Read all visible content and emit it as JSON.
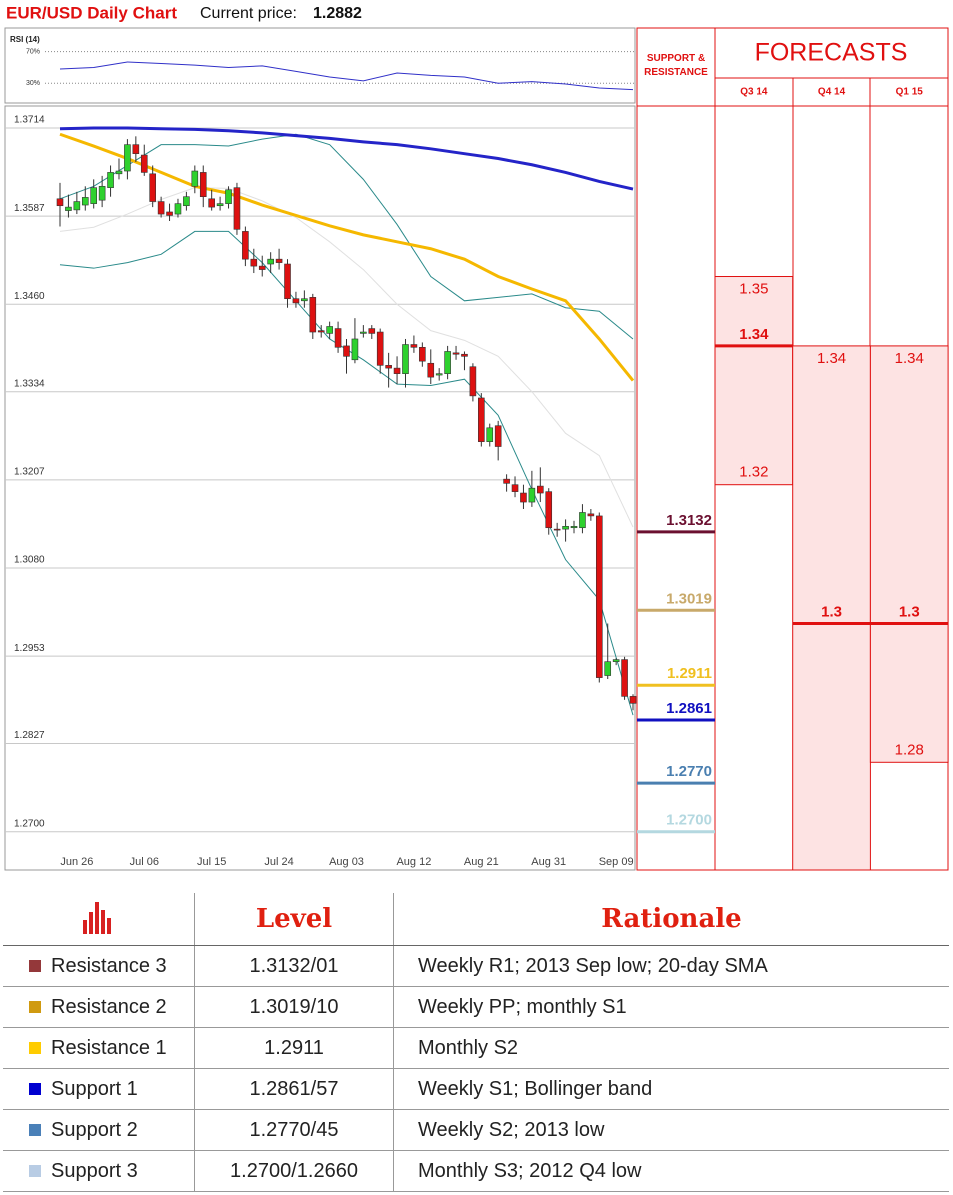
{
  "header": {
    "title": "EUR/USD Daily Chart",
    "price_label": "Current price:",
    "price": 1.2882
  },
  "chart_data": [
    {
      "type": "line",
      "title": "RSI (14)",
      "x": [
        0,
        4,
        8,
        12,
        16,
        20,
        24,
        28,
        32,
        36,
        40,
        44,
        48,
        52,
        56,
        60,
        64,
        68
      ],
      "xlim": [
        0,
        68
      ],
      "series": [
        {
          "color": "#3030c8",
          "values": [
            48,
            50,
            57,
            55,
            53,
            50,
            52,
            45,
            38,
            33,
            43,
            40,
            38,
            30,
            32,
            29,
            24,
            22
          ]
        }
      ],
      "ylim": [
        5,
        100
      ],
      "yticks": [
        {
          "value": 70,
          "label": "70%"
        },
        {
          "value": 30,
          "label": "30%"
        }
      ]
    },
    {
      "type": "candlestick",
      "categories": [
        null,
        null,
        "Jun 26",
        null,
        null,
        null,
        null,
        null,
        null,
        null,
        "Jul 06",
        null,
        null,
        null,
        null,
        null,
        null,
        null,
        "Jul 15",
        null,
        null,
        null,
        null,
        null,
        null,
        null,
        "Jul 24",
        null,
        null,
        null,
        null,
        null,
        null,
        null,
        "Aug 03",
        null,
        null,
        null,
        null,
        null,
        null,
        null,
        "Aug 12",
        null,
        null,
        null,
        null,
        null,
        null,
        null,
        "Aug 21",
        null,
        null,
        null,
        null,
        null,
        null,
        null,
        "Aug 31",
        null,
        null,
        null,
        null,
        null,
        null,
        null,
        "Sep 09",
        null,
        null
      ],
      "open": [
        1.3612,
        1.3595,
        1.3596,
        1.3603,
        1.3605,
        1.361,
        1.3628,
        1.3648,
        1.3652,
        1.369,
        1.3675,
        1.3648,
        1.3608,
        1.3593,
        1.359,
        1.3602,
        1.363,
        1.365,
        1.3612,
        1.3602,
        1.3605,
        1.3628,
        1.3565,
        1.3525,
        1.3515,
        1.3518,
        1.3525,
        1.3518,
        1.3468,
        1.3465,
        1.347,
        1.3422,
        1.3418,
        1.3425,
        1.34,
        1.338,
        1.3418,
        1.3425,
        1.342,
        1.3372,
        1.3368,
        1.336,
        1.3402,
        1.3398,
        1.3375,
        1.3358,
        1.336,
        1.339,
        1.3388,
        1.337,
        1.3325,
        1.3262,
        1.3285,
        1.3208,
        1.32,
        1.3188,
        1.3175,
        1.3198,
        1.319,
        1.3136,
        1.3136,
        1.3138,
        1.3138,
        1.3158,
        1.3155,
        1.2925,
        1.2945,
        1.2948,
        1.2895
      ],
      "high": [
        1.3635,
        1.3618,
        1.3622,
        1.363,
        1.364,
        1.3645,
        1.366,
        1.367,
        1.3698,
        1.3702,
        1.369,
        1.366,
        1.3615,
        1.3605,
        1.3612,
        1.3622,
        1.366,
        1.366,
        1.3625,
        1.3615,
        1.363,
        1.3635,
        1.3572,
        1.354,
        1.353,
        1.3535,
        1.354,
        1.3525,
        1.3478,
        1.348,
        1.3475,
        1.343,
        1.3435,
        1.3435,
        1.341,
        1.344,
        1.343,
        1.343,
        1.3425,
        1.339,
        1.3385,
        1.341,
        1.3415,
        1.3405,
        1.3395,
        1.3368,
        1.34,
        1.34,
        1.3392,
        1.3375,
        1.3332,
        1.3288,
        1.3292,
        1.3215,
        1.3212,
        1.32,
        1.322,
        1.3225,
        1.3195,
        1.3145,
        1.315,
        1.3148,
        1.3172,
        1.3165,
        1.316,
        1.3,
        1.295,
        1.2952,
        1.2898
      ],
      "low": [
        1.3572,
        1.3585,
        1.359,
        1.3595,
        1.3598,
        1.36,
        1.3615,
        1.364,
        1.364,
        1.3665,
        1.3645,
        1.36,
        1.3585,
        1.358,
        1.3585,
        1.3595,
        1.362,
        1.36,
        1.3595,
        1.3595,
        1.3598,
        1.356,
        1.3515,
        1.3505,
        1.35,
        1.3505,
        1.351,
        1.3455,
        1.3455,
        1.3455,
        1.341,
        1.3412,
        1.341,
        1.339,
        1.336,
        1.3375,
        1.3412,
        1.341,
        1.336,
        1.334,
        1.3345,
        1.334,
        1.339,
        1.337,
        1.3345,
        1.335,
        1.3352,
        1.338,
        1.3365,
        1.332,
        1.3255,
        1.3255,
        1.3235,
        1.319,
        1.3182,
        1.3165,
        1.3168,
        1.3175,
        1.3128,
        1.3125,
        1.3118,
        1.313,
        1.313,
        1.3148,
        1.2915,
        1.292,
        1.294,
        1.289,
        1.2875
      ],
      "close": [
        1.3602,
        1.36,
        1.3608,
        1.3614,
        1.3628,
        1.363,
        1.365,
        1.3652,
        1.369,
        1.3677,
        1.365,
        1.3608,
        1.359,
        1.3588,
        1.3605,
        1.3615,
        1.3652,
        1.3615,
        1.36,
        1.3605,
        1.3625,
        1.3568,
        1.3525,
        1.3515,
        1.351,
        1.3525,
        1.352,
        1.3468,
        1.3462,
        1.3468,
        1.342,
        1.342,
        1.3428,
        1.3398,
        1.3385,
        1.341,
        1.342,
        1.3418,
        1.3372,
        1.3368,
        1.336,
        1.3402,
        1.3398,
        1.3378,
        1.3355,
        1.336,
        1.3392,
        1.3388,
        1.3385,
        1.3328,
        1.3262,
        1.3282,
        1.3255,
        1.3202,
        1.319,
        1.3175,
        1.3195,
        1.3188,
        1.3138,
        1.3135,
        1.314,
        1.314,
        1.316,
        1.3155,
        1.2922,
        1.2945,
        1.2948,
        1.2895,
        1.2885
      ],
      "up_color": "#2ed12e",
      "down_color": "#dd1111",
      "overlays": {
        "x": [
          0,
          4,
          8,
          12,
          16,
          20,
          24,
          28,
          32,
          36,
          40,
          44,
          48,
          52,
          56,
          60,
          64,
          68
        ],
        "series": [
          {
            "color": "#e0e0e0",
            "width": 1,
            "values": [
              1.3565,
              1.3571,
              1.359,
              1.3611,
              1.3628,
              1.3627,
              1.3609,
              1.3585,
              1.355,
              1.351,
              1.346,
              1.3422,
              1.3408,
              1.3385,
              1.3334,
              1.3274,
              1.3242,
              1.3139
            ]
          },
          {
            "color": "#2a8a8a",
            "width": 1,
            "values": [
              1.3612,
              1.363,
              1.366,
              1.369,
              1.369,
              1.3688,
              1.3698,
              1.3705,
              1.369,
              1.364,
              1.3575,
              1.35,
              1.3465,
              1.347,
              1.3475,
              1.3455,
              1.345,
              1.341
            ]
          },
          {
            "color": "#2a8a8a",
            "width": 1,
            "values": [
              1.3517,
              1.3512,
              1.352,
              1.3532,
              1.3565,
              1.3565,
              1.352,
              1.3465,
              1.341,
              1.338,
              1.3345,
              1.3343,
              1.3352,
              1.33,
              1.3193,
              1.3092,
              1.3034,
              1.2868
            ]
          },
          {
            "color": "#f5b800",
            "width": 3,
            "values": [
              1.3705,
              1.3688,
              1.367,
              1.365,
              1.363,
              1.362,
              1.3603,
              1.3588,
              1.3573,
              1.356,
              1.355,
              1.354,
              1.3525,
              1.35,
              1.3482,
              1.3465,
              1.341,
              1.335
            ]
          },
          {
            "color": "#2424c8",
            "width": 3,
            "values": [
              1.3713,
              1.3714,
              1.3714,
              1.3713,
              1.3712,
              1.371,
              1.3707,
              1.3703,
              1.3699,
              1.3694,
              1.369,
              1.3684,
              1.3677,
              1.367,
              1.3661,
              1.365,
              1.3637,
              1.3626
            ]
          }
        ]
      },
      "ylim": [
        1.2652,
        1.3714
      ],
      "yticks": [
        {
          "value": 1.27,
          "label": "1.2700"
        },
        1.2827,
        1.2953,
        {
          "value": 1.308,
          "label": "1.3080"
        },
        1.3207,
        1.3334,
        {
          "value": 1.346,
          "label": "1.3460"
        },
        1.3587,
        1.3714
      ],
      "grid": true
    },
    {
      "type": "levels",
      "title": "SUPPORT & RESISTANCE",
      "levels": [
        {
          "value": 1.3132,
          "color": "#6b1030"
        },
        {
          "value": 1.3019,
          "color": "#c8a96a"
        },
        {
          "value": 1.2911,
          "color": "#f0c020"
        },
        {
          "value": 1.2861,
          "color": "#1010c0"
        },
        {
          "value": 1.277,
          "label": "1.2770",
          "color": "#4a7fb0"
        },
        {
          "value": 1.27,
          "label": "1.2700",
          "color": "#b4d8e0"
        }
      ]
    },
    {
      "type": "forecast",
      "title": "FORECASTS",
      "color": "#e01010",
      "periods": [
        {
          "name": "Q3 14",
          "high": 1.35,
          "median": 1.34,
          "low": 1.32
        },
        {
          "name": "Q4 14",
          "high": 1.34,
          "median": 1.3,
          "low": null
        },
        {
          "name": "Q1 15",
          "high": 1.34,
          "median": 1.3,
          "low": 1.28
        }
      ]
    }
  ],
  "table": {
    "header": [
      "Level",
      "Rationale"
    ],
    "rows": [
      {
        "color": "#94383a",
        "name": "Resistance 3",
        "level": "1.3132/01",
        "rationale": "Weekly R1; 2013 Sep low; 20-day SMA"
      },
      {
        "color": "#d09a10",
        "name": "Resistance 2",
        "level": "1.3019/10",
        "rationale": "Weekly PP; monthly S1"
      },
      {
        "color": "#ffcc00",
        "name": "Resistance 1",
        "level": 1.2911,
        "rationale": "Monthly S2"
      },
      {
        "color": "#0000d0",
        "name": "Support 1",
        "level": "1.2861/57",
        "rationale": "Weekly S1; Bollinger band"
      },
      {
        "color": "#4a80b8",
        "name": "Support 2",
        "level": "1.2770/45",
        "rationale": "Weekly S2; 2013 low"
      },
      {
        "color": "#b8cce4",
        "name": "Support 3",
        "level": "1.2700/1.2660",
        "rationale": "Monthly S3; 2012 Q4 low"
      }
    ]
  }
}
